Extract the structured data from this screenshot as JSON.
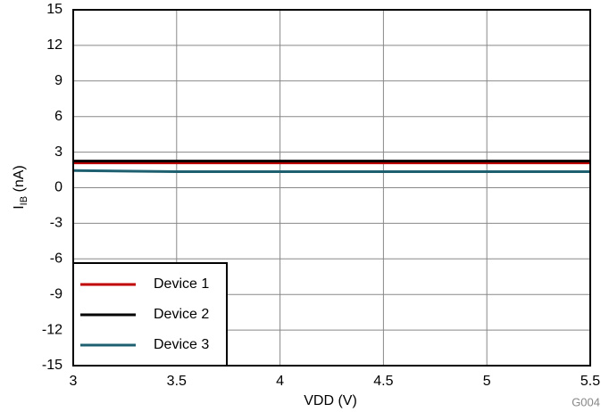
{
  "chart_data": {
    "type": "line",
    "ylabel_parts": [
      "I",
      "IB",
      " (nA)"
    ],
    "xlabel": "VDD (V)",
    "annotation": "G004",
    "x": [
      3,
      3.5,
      4,
      4.5,
      5,
      5.5
    ],
    "series": [
      {
        "name": "Device 1",
        "color": "#c00000",
        "values": [
          2.1,
          2.1,
          2.1,
          2.1,
          2.1,
          2.1
        ]
      },
      {
        "name": "Device 2",
        "color": "#000000",
        "values": [
          2.25,
          2.25,
          2.25,
          2.25,
          2.25,
          2.25
        ]
      },
      {
        "name": "Device 3",
        "color": "#1e6070",
        "values": [
          1.45,
          1.35,
          1.35,
          1.35,
          1.35,
          1.35
        ]
      }
    ],
    "xlim": [
      3,
      5.5
    ],
    "xticks": [
      3,
      3.5,
      4,
      4.5,
      5,
      5.5
    ],
    "ylim": [
      -15,
      15
    ],
    "yticks": [
      -15,
      -12,
      -9,
      -6,
      -3,
      0,
      3,
      6,
      9,
      12,
      15
    ],
    "grid": true,
    "legend": "lower left"
  }
}
